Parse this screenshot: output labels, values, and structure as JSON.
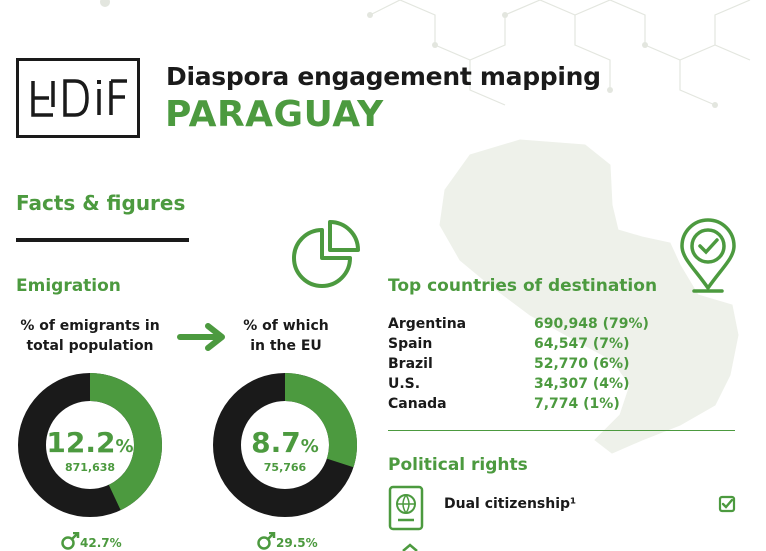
{
  "header": {
    "logo_text": "EUDiF",
    "title": "Diaspora engagement mapping",
    "country": "PARAGUAY"
  },
  "section_title": "Facts & figures",
  "emigration": {
    "heading": "Emigration",
    "share_total": {
      "label_line1": "% of emigrants in",
      "label_line2": "total population",
      "percent": "12.2",
      "percent_sign": "%",
      "count": "871,638",
      "male_share": "42.7%",
      "donut_fraction": 0.43
    },
    "share_eu": {
      "label_line1": "% of which",
      "label_line2": "in the EU",
      "percent": "8.7",
      "percent_sign": "%",
      "count": "75,766",
      "male_share": "29.5%",
      "donut_fraction": 0.3
    }
  },
  "destinations": {
    "heading": "Top countries of destination",
    "rows": [
      {
        "country": "Argentina",
        "value": "690,948 (79%)"
      },
      {
        "country": "Spain",
        "value": "64,547 (7%)"
      },
      {
        "country": "Brazil",
        "value": "52,770 (6%)"
      },
      {
        "country": "U.S.",
        "value": "34,307 (4%)"
      },
      {
        "country": "Canada",
        "value": "7,774 (1%)"
      }
    ]
  },
  "political_rights": {
    "heading": "Political rights",
    "items": [
      {
        "label": "Dual citizenship¹",
        "checked": true
      }
    ]
  },
  "colors": {
    "accent": "#4c9a3f",
    "dark": "#1a1a1a",
    "map": "#eef1ea"
  },
  "icons": [
    "pie-chart-icon",
    "arrow-right-icon",
    "location-check-icon",
    "passport-icon",
    "checkbox-icon",
    "male-icon"
  ]
}
